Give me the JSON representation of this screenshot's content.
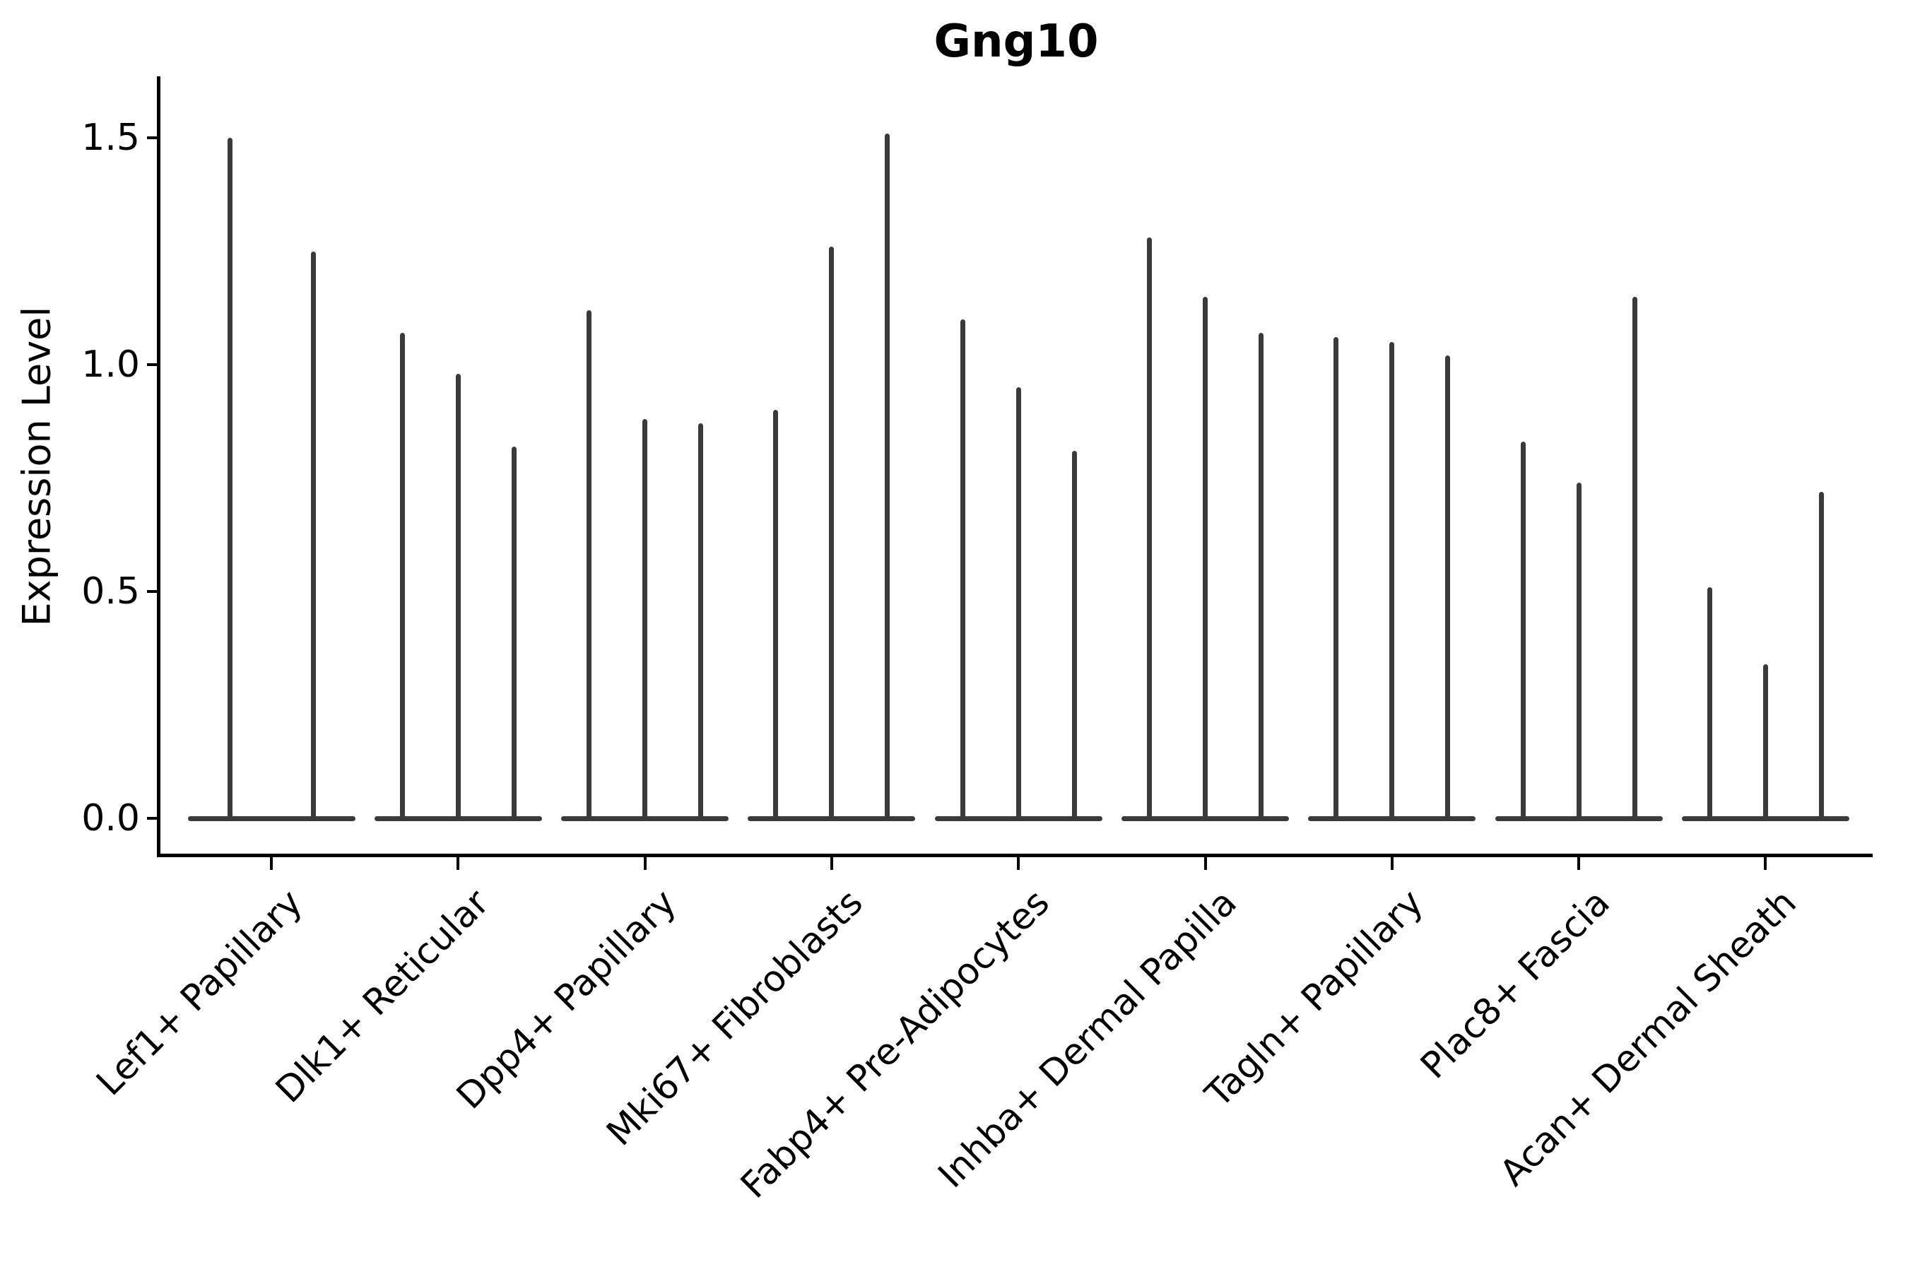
{
  "figure": {
    "title": "Gng10",
    "ylabel": "Expression Level"
  },
  "chart_data": {
    "type": "violin",
    "title": "Gng10",
    "xlabel": "",
    "ylabel": "Expression Level",
    "ylim": [
      0,
      1.58
    ],
    "grid": false,
    "legend_position": "none",
    "background_color": "#ffffff",
    "axis_color": "#000000",
    "violin_color": "#3a3a3a",
    "yticks": [
      {
        "value": 0.0,
        "label": "0.0"
      },
      {
        "value": 0.5,
        "label": "0.5"
      },
      {
        "value": 1.0,
        "label": "1.0"
      },
      {
        "value": 1.5,
        "label": "1.5"
      }
    ],
    "categories": [
      "Lef1+ Papillary",
      "Dlk1+ Reticular",
      "Dpp4+ Papillary",
      "Mki67+ Fibroblasts",
      "Fabp4+ Pre-Adipocytes",
      "Inhba+ Dermal Papilla",
      "Tagln+ Papillary",
      "Plac8+ Fascia",
      "Acan+ Dermal Sheath"
    ],
    "series": [
      {
        "category": "Lef1+ Papillary",
        "violin_max_values": [
          1.5,
          1.25
        ]
      },
      {
        "category": "Dlk1+ Reticular",
        "violin_max_values": [
          1.07,
          0.98,
          0.82
        ]
      },
      {
        "category": "Dpp4+ Papillary",
        "violin_max_values": [
          1.12,
          0.88,
          0.87
        ]
      },
      {
        "category": "Mki67+ Fibroblasts",
        "violin_max_values": [
          0.9,
          1.26,
          1.51
        ]
      },
      {
        "category": "Fabp4+ Pre-Adipocytes",
        "violin_max_values": [
          1.1,
          0.95,
          0.81
        ]
      },
      {
        "category": "Inhba+ Dermal Papilla",
        "violin_max_values": [
          1.28,
          1.15,
          1.07
        ]
      },
      {
        "category": "Tagln+ Papillary",
        "violin_max_values": [
          1.06,
          1.05,
          1.02
        ]
      },
      {
        "category": "Plac8+ Fascia",
        "violin_max_values": [
          0.83,
          0.74,
          1.15
        ]
      },
      {
        "category": "Acan+ Dermal Sheath",
        "violin_max_values": [
          0.51,
          0.34,
          0.72
        ]
      }
    ],
    "note_violin_shape": "each violin is a near-zero-width spike rising from a flat base at expression 0"
  }
}
